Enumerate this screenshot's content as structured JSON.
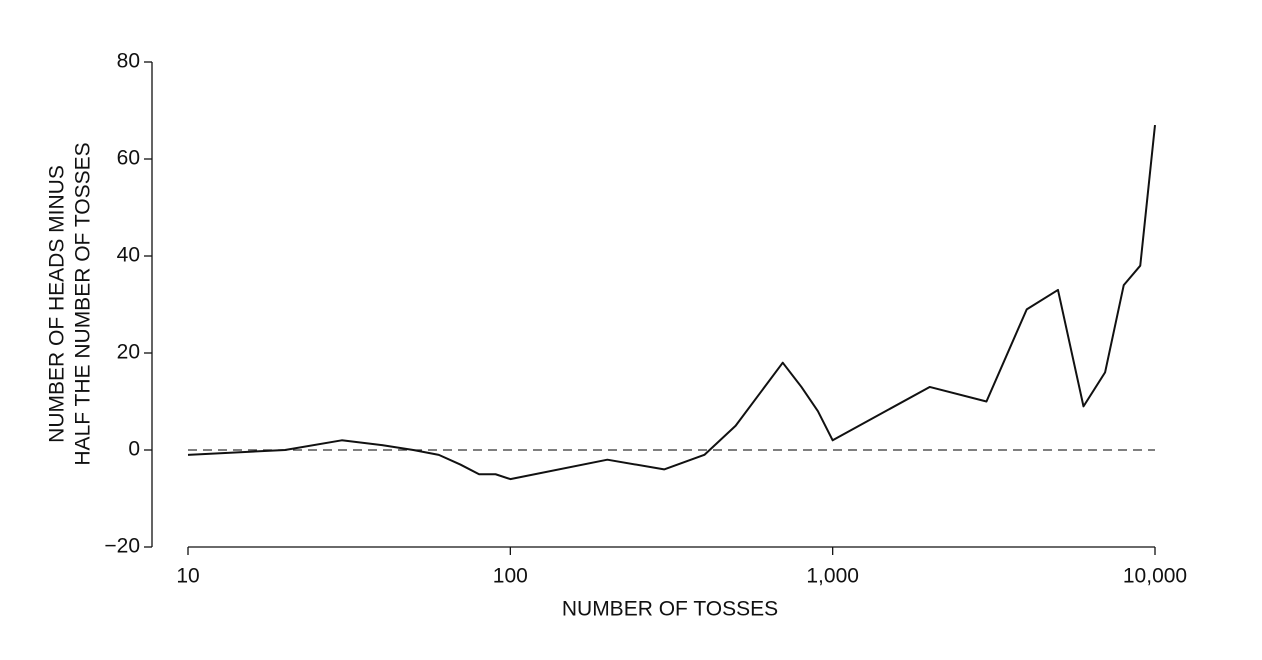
{
  "chart_data": {
    "type": "line",
    "xlabel": "NUMBER OF TOSSES",
    "ylabel": [
      "NUMBER OF HEADS MINUS",
      "HALF THE NUMBER OF TOSSES"
    ],
    "x": [
      10,
      20,
      30,
      40,
      50,
      60,
      70,
      80,
      90,
      100,
      200,
      300,
      400,
      500,
      700,
      800,
      900,
      1000,
      2000,
      3000,
      4000,
      5000,
      6000,
      7000,
      8000,
      9000,
      10000
    ],
    "series": [
      {
        "color": "#111111",
        "values": [
          -1,
          0,
          2,
          1,
          0,
          -1,
          -3,
          -5,
          -5,
          -6,
          -2,
          -4,
          -1,
          5,
          18,
          13,
          8,
          2,
          13,
          10,
          29,
          33,
          9,
          16,
          34,
          38,
          67
        ]
      }
    ],
    "xlim": [
      10,
      10000
    ],
    "ylim": [
      -20,
      80
    ],
    "xscale": "log",
    "xticks": [
      10,
      100,
      {
        "value": 1000,
        "label": "1,000"
      },
      {
        "value": 10000,
        "label": "10,000"
      }
    ],
    "yticks": [
      {
        "value": -20,
        "label": "−20"
      },
      0,
      20,
      40,
      60,
      80
    ],
    "hline": 0
  }
}
